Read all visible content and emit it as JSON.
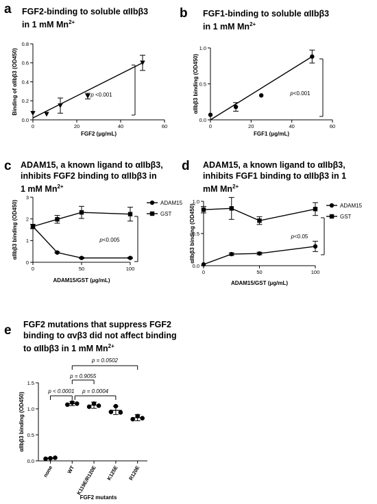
{
  "panels": {
    "a": {
      "letter": "a",
      "title_l1": "FGF2-binding to soluble αIIbβ3",
      "title_l2": "in 1 mM Mn",
      "title_sup": "2+"
    },
    "b": {
      "letter": "b",
      "title_l1": "FGF1-binding to soluble αIIbβ3",
      "title_l2": "in 1 mM Mn",
      "title_sup": "2+"
    },
    "c": {
      "letter": "c",
      "title_l1": "ADAM15, a known ligand to αIIbβ3,",
      "title_l2": "inhibits FGF2 binding to αIIbβ3 in",
      "title_l3": "1 mM Mn",
      "title_sup": "2+"
    },
    "d": {
      "letter": "d",
      "title_l1": "ADAM15, a known ligand to αIIbβ3,",
      "title_l2": "inhibits FGF1 binding to αIIbβ3 in 1",
      "title_l3": "mM Mn",
      "title_sup": "2+"
    },
    "e": {
      "letter": "e",
      "title_l1": "FGF2 mutations that suppress FGF2",
      "title_l2": "binding to αvβ3 did not affect binding",
      "title_l3": "to αIIbβ3 in 1 mM Mn",
      "title_sup": "2+"
    }
  },
  "chart_data": [
    {
      "id": "a",
      "type": "scatter",
      "xlabel": "FGF2 (μg/mL)",
      "ylabel": "Binding of αIIbβ3 (OD450)",
      "xlim": [
        0,
        60
      ],
      "ylim": [
        0,
        0.8
      ],
      "xticks": [
        "0",
        "20",
        "40",
        "60"
      ],
      "yticks": [
        "0.0",
        "0.2",
        "0.4",
        "0.6",
        "0.8"
      ],
      "marker": "triangle-down",
      "series": [
        {
          "x": [
            0,
            6.25,
            12.5,
            25,
            50
          ],
          "y": [
            0.07,
            0.06,
            0.15,
            0.25,
            0.6
          ],
          "err": [
            0,
            0,
            0.08,
            0.03,
            0.08
          ]
        }
      ],
      "fit": {
        "x": [
          0,
          50
        ],
        "y": [
          0.02,
          0.6
        ]
      },
      "annotation": "p <0.001"
    },
    {
      "id": "b",
      "type": "scatter",
      "xlabel": "FGF1 (μg/mL)",
      "ylabel": "αIIbβ3 binding (OD450)",
      "xlim": [
        0,
        60
      ],
      "ylim": [
        0,
        1.0
      ],
      "xticks": [
        "0",
        "20",
        "40",
        "60"
      ],
      "yticks": [
        "0.0",
        "0.5",
        "1.0"
      ],
      "marker": "circle",
      "series": [
        {
          "x": [
            0,
            12.5,
            25,
            50
          ],
          "y": [
            0.07,
            0.18,
            0.34,
            0.88
          ],
          "err": [
            0,
            0.06,
            0,
            0.09
          ]
        }
      ],
      "fit": {
        "x": [
          0,
          50
        ],
        "y": [
          0.0,
          0.88
        ]
      },
      "annotation": "p<0.001"
    },
    {
      "id": "c",
      "type": "line",
      "xlabel": "ADAM15/GST (μg/mL)",
      "ylabel": "αIIbβ3 binding (OD450)",
      "xlim": [
        0,
        100
      ],
      "ylim": [
        0,
        3
      ],
      "xticks": [
        "0",
        "50",
        "100"
      ],
      "yticks": [
        "0",
        "1",
        "2",
        "3"
      ],
      "series": [
        {
          "name": "ADAM15",
          "marker": "circle",
          "x": [
            0,
            25,
            50,
            100
          ],
          "y": [
            1.65,
            0.45,
            0.2,
            0.2
          ],
          "err": [
            0.1,
            0.03,
            0.03,
            0.03
          ]
        },
        {
          "name": "GST",
          "marker": "square",
          "x": [
            0,
            25,
            50,
            100
          ],
          "y": [
            1.65,
            1.98,
            2.3,
            2.22
          ],
          "err": [
            0.1,
            0.18,
            0.28,
            0.32
          ]
        }
      ],
      "annotation": "p<0.005"
    },
    {
      "id": "d",
      "type": "line",
      "xlabel": "ADAM15/GST (μg/mL)",
      "ylabel": "αIIbβ3 binding (OD450)",
      "xlim": [
        0,
        100
      ],
      "ylim": [
        0,
        1.0
      ],
      "xticks": [
        "0",
        "50",
        "100"
      ],
      "yticks": [
        "0.0",
        "0.5",
        "1.0"
      ],
      "series": [
        {
          "name": "ADAM15",
          "marker": "circle",
          "x": [
            0,
            25,
            50,
            100
          ],
          "y": [
            0.02,
            0.18,
            0.19,
            0.3
          ],
          "err": [
            0,
            0.02,
            0.02,
            0.08
          ]
        },
        {
          "name": "GST",
          "marker": "square",
          "x": [
            0,
            25,
            50,
            100
          ],
          "y": [
            0.87,
            0.89,
            0.7,
            0.88
          ],
          "err": [
            0.05,
            0.17,
            0.06,
            0.1
          ]
        }
      ],
      "annotation": "p<0.05"
    },
    {
      "id": "e",
      "type": "scatter",
      "xlabel": "FGF2 mutants",
      "ylabel": "αIIbβ3 binding (OD450)",
      "ylim": [
        0,
        1.5
      ],
      "yticks": [
        "0.0",
        "0.5",
        "1.0",
        "1.5"
      ],
      "categories": [
        "none",
        "WT",
        "K119E/R120E",
        "K125E",
        "R120E"
      ],
      "means": [
        0.05,
        1.1,
        1.07,
        0.97,
        0.83
      ],
      "sd": [
        0.01,
        0.04,
        0.06,
        0.08,
        0.06
      ],
      "points": [
        [
          0.04,
          0.05,
          0.06
        ],
        [
          1.08,
          1.12,
          1.1
        ],
        [
          1.04,
          1.1,
          1.06
        ],
        [
          0.94,
          1.05,
          0.93
        ],
        [
          0.8,
          0.86,
          0.82
        ]
      ],
      "comparisons": [
        {
          "from": "none",
          "to": "WT",
          "label": "p < 0.0001"
        },
        {
          "from": "WT",
          "to": "K119E/R120E",
          "label": "p = 0.9055"
        },
        {
          "from": "WT",
          "to": "K125E",
          "label": "p = 0.0004"
        },
        {
          "from": "WT",
          "to": "R120E",
          "label": "p = 0.0502"
        }
      ]
    }
  ]
}
